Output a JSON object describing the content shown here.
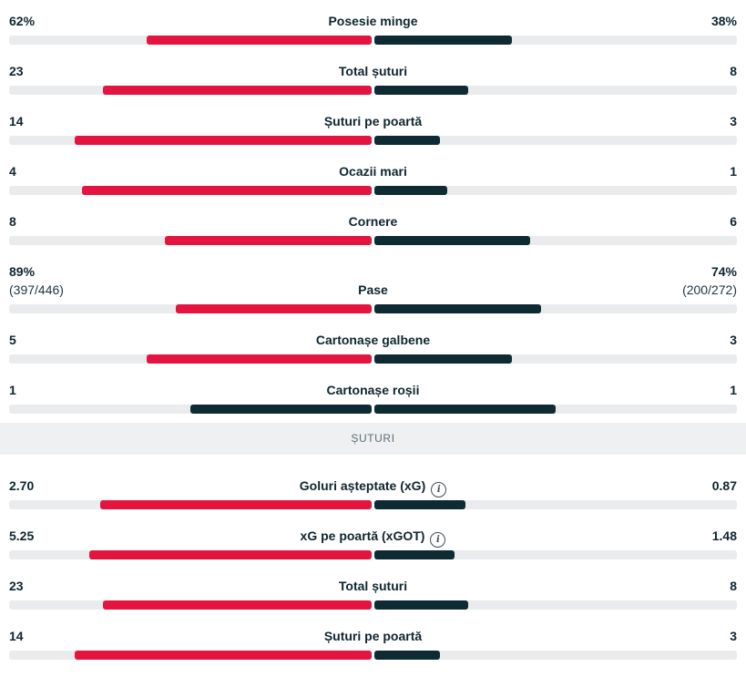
{
  "stats": [
    {
      "label": "Posesie minge",
      "home": "62%",
      "away": "38%",
      "home_frac": 0.62,
      "away_frac": 0.38
    },
    {
      "label": "Total șuturi",
      "home": "23",
      "away": "8",
      "home_frac": 0.74,
      "away_frac": 0.26
    },
    {
      "label": "Șuturi pe poartă",
      "home": "14",
      "away": "3",
      "home_frac": 0.82,
      "away_frac": 0.18
    },
    {
      "label": "Ocazii mari",
      "home": "4",
      "away": "1",
      "home_frac": 0.8,
      "away_frac": 0.2
    },
    {
      "label": "Cornere",
      "home": "8",
      "away": "6",
      "home_frac": 0.57,
      "away_frac": 0.43
    },
    {
      "label": "Pase",
      "home": "89%",
      "away": "74%",
      "home_sub": "(397/446)",
      "away_sub": "(200/272)",
      "home_frac": 0.54,
      "away_frac": 0.46
    },
    {
      "label": "Cartonașe galbene",
      "home": "5",
      "away": "3",
      "home_frac": 0.62,
      "away_frac": 0.38
    },
    {
      "label": "Cartonașe roșii",
      "home": "1",
      "away": "1",
      "home_frac": 0.5,
      "away_frac": 0.5
    }
  ],
  "shots_section": {
    "title": "ȘUTURI",
    "stats": [
      {
        "label": "Goluri așteptate (xG)",
        "home": "2.70",
        "away": "0.87",
        "info": true,
        "home_frac": 0.75,
        "away_frac": 0.25
      },
      {
        "label": "xG pe poartă (xGOT)",
        "home": "5.25",
        "away": "1.48",
        "info": true,
        "home_frac": 0.78,
        "away_frac": 0.22
      },
      {
        "label": "Total șuturi",
        "home": "23",
        "away": "8",
        "home_frac": 0.74,
        "away_frac": 0.26
      },
      {
        "label": "Șuturi pe poartă",
        "home": "14",
        "away": "3",
        "home_frac": 0.82,
        "away_frac": 0.18
      }
    ]
  },
  "info_icon_glyph": "i",
  "colors": {
    "home": "#e3143f",
    "away": "#0e2a33",
    "track": "#e9ebec"
  }
}
